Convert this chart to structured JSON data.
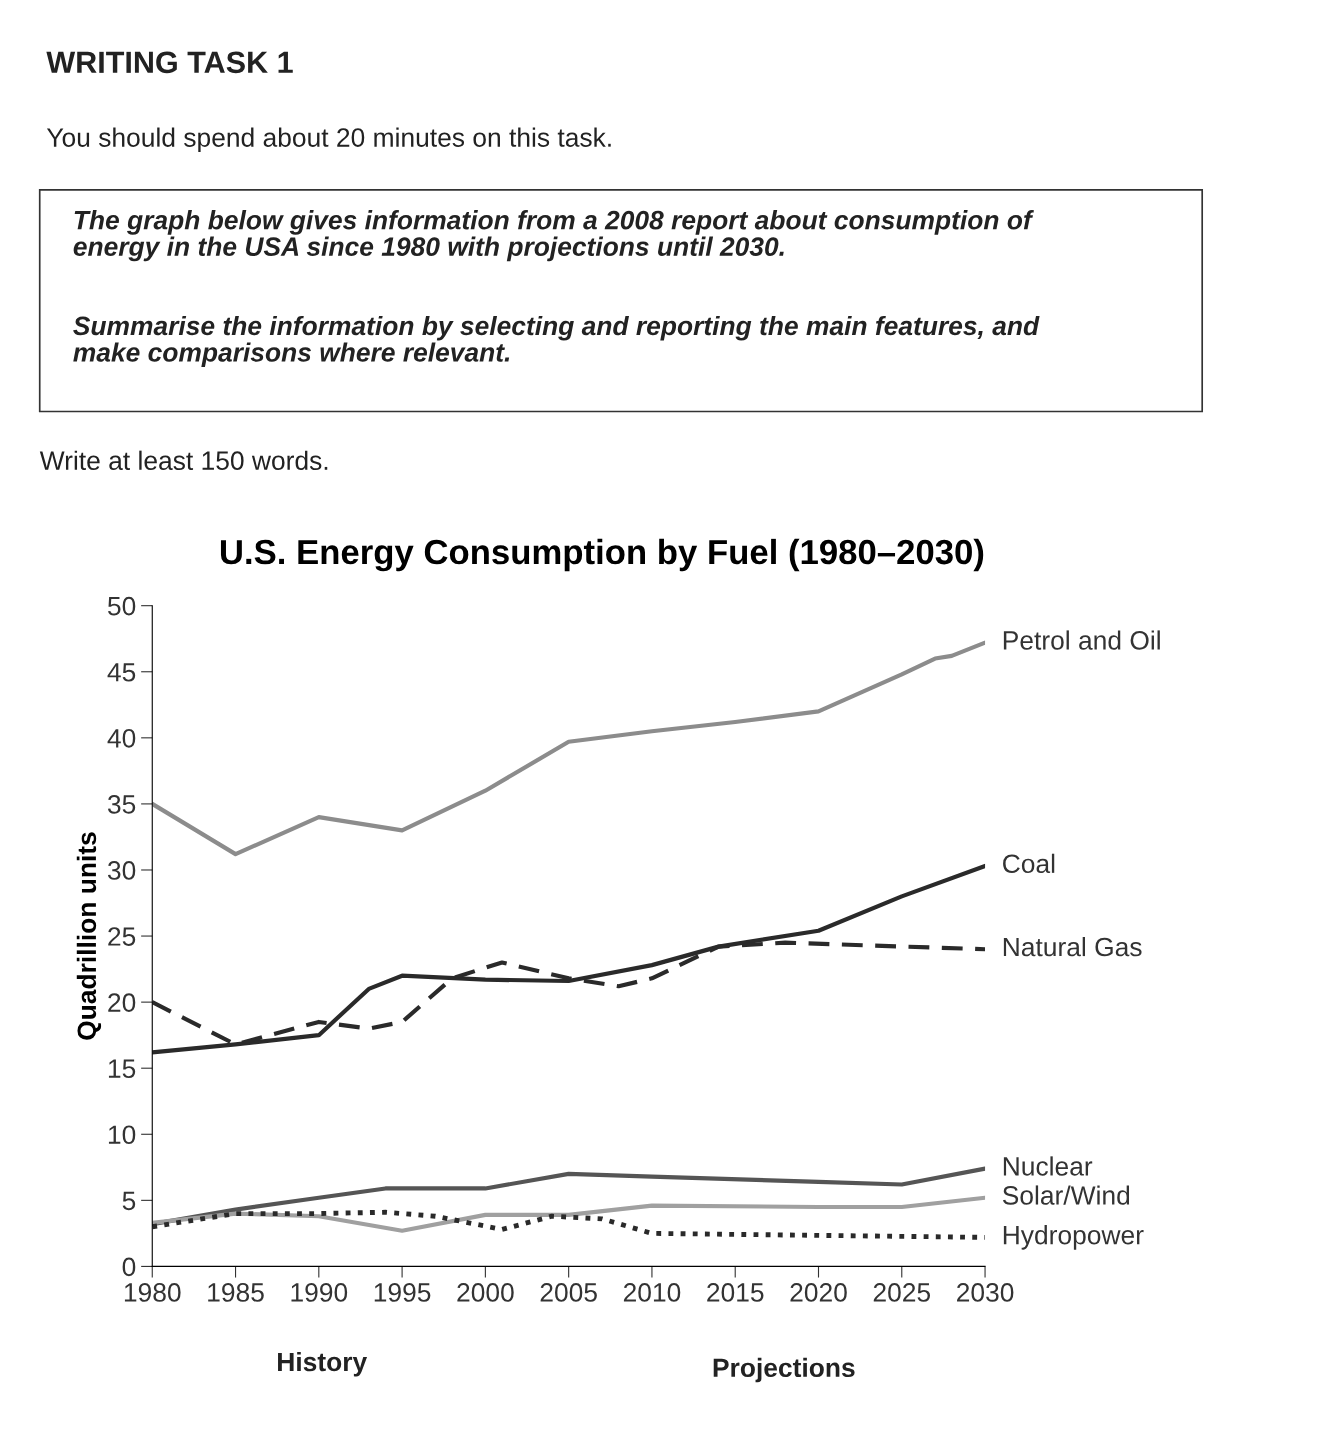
{
  "chart_data": {
    "type": "line",
    "title": "U.S. Energy Consumption by Fuel (1980–2030)",
    "ylabel": "Quadrillion units",
    "annotations": [
      "WRITING TASK 1",
      "You should spend about 20 minutes on this task.",
      "The graph below gives information from a 2008 report about consumption of\nenergy in the USA since 1980 with projections until 2030.",
      "Summarise the information by selecting and reporting the main features, and\nmake comparisons where relevant.",
      "Write at least 150 words.",
      "History",
      "Projections"
    ],
    "xlim": [
      1980,
      2030
    ],
    "xticks": [
      1980,
      1985,
      1990,
      1995,
      2000,
      2005,
      2010,
      2015,
      2020,
      2025,
      2030
    ],
    "ylim": [
      0,
      50
    ],
    "yticks": [
      0,
      5,
      10,
      15,
      20,
      25,
      30,
      35,
      40,
      45,
      50
    ],
    "grid": false,
    "legend": false,
    "series": [
      {
        "name": "Petrol and Oil",
        "color": "#8c8c8c",
        "line_style": "solid",
        "x": [
          1980,
          1985,
          1990,
          1995,
          2000,
          2005,
          2010,
          2015,
          2020,
          2025,
          2027,
          2028,
          2030
        ],
        "values": [
          35,
          31.2,
          34,
          33,
          36,
          39.7,
          40.5,
          41.2,
          42,
          44.8,
          46,
          46.2,
          47.2
        ]
      },
      {
        "name": "Coal",
        "color": "#2a2a2a",
        "line_style": "solid",
        "x": [
          1980,
          1985,
          1990,
          1993,
          1995,
          2000,
          2005,
          2010,
          2014,
          2020,
          2025,
          2030
        ],
        "values": [
          16.2,
          16.8,
          17.5,
          21,
          22,
          21.7,
          21.6,
          22.8,
          24.2,
          25.4,
          28,
          30.3
        ]
      },
      {
        "name": "Natural Gas",
        "color": "#2a2a2a",
        "line_style": "dashed",
        "x": [
          1980,
          1985,
          1990,
          1993,
          1995,
          1998,
          2001,
          2005,
          2008,
          2010,
          2014,
          2018,
          2030
        ],
        "values": [
          20,
          16.8,
          18.5,
          18,
          18.5,
          21.8,
          23,
          21.8,
          21.2,
          21.8,
          24.2,
          24.5,
          24
        ]
      },
      {
        "name": "Nuclear",
        "color": "#555555",
        "line_style": "solid",
        "x": [
          1980,
          1985,
          1990,
          1994,
          2000,
          2005,
          2010,
          2020,
          2025,
          2030
        ],
        "values": [
          3.2,
          4.3,
          5.2,
          5.9,
          5.9,
          7,
          6.8,
          6.4,
          6.2,
          7.4
        ]
      },
      {
        "name": "Solar/Wind",
        "color": "#a0a0a0",
        "line_style": "solid",
        "x": [
          1980,
          1985,
          1990,
          1995,
          2000,
          2005,
          2010,
          2020,
          2025,
          2030
        ],
        "values": [
          3.3,
          4,
          3.8,
          2.7,
          3.9,
          3.9,
          4.6,
          4.5,
          4.5,
          5.2
        ]
      },
      {
        "name": "Hydropower",
        "color": "#2a2a2a",
        "line_style": "dotted",
        "x": [
          1980,
          1985,
          1990,
          1994,
          1997,
          2001,
          2004,
          2007,
          2010,
          2030
        ],
        "values": [
          3,
          4,
          4,
          4.1,
          3.8,
          2.8,
          3.8,
          3.6,
          2.5,
          2.2
        ]
      }
    ]
  }
}
